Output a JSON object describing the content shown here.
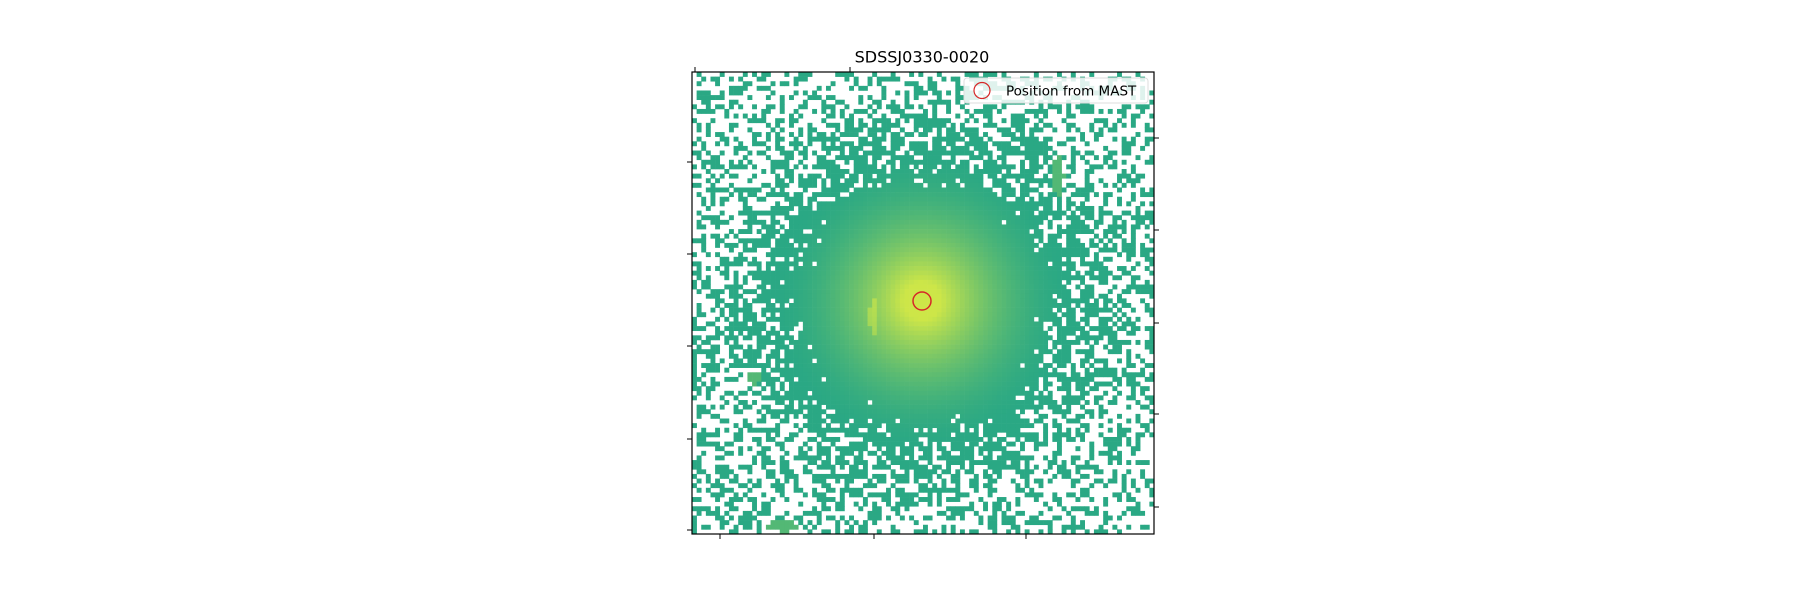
{
  "chart_data": {
    "type": "image",
    "title": "SDSSJ0330-0020",
    "series": [
      {
        "name": "Position from MAST",
        "color": "#d62728"
      }
    ],
    "legend": "upper right"
  }
}
